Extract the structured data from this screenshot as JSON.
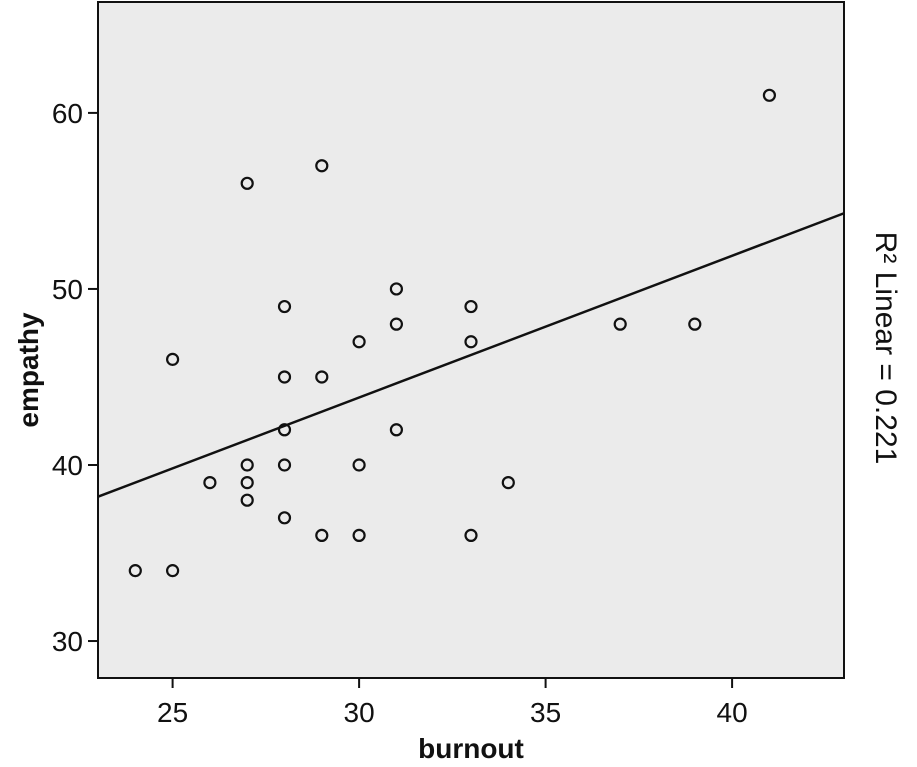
{
  "chart_data": {
    "type": "scatter",
    "xlabel": "burnout",
    "ylabel": "empathy",
    "xlim": [
      23,
      43
    ],
    "ylim": [
      27.9,
      66.3
    ],
    "xticks": [
      25,
      30,
      35,
      40
    ],
    "yticks": [
      30,
      40,
      50,
      60
    ],
    "grid": false,
    "points": [
      {
        "x": 24,
        "y": 34
      },
      {
        "x": 25,
        "y": 34
      },
      {
        "x": 25,
        "y": 46
      },
      {
        "x": 26,
        "y": 39
      },
      {
        "x": 27,
        "y": 56
      },
      {
        "x": 27,
        "y": 40
      },
      {
        "x": 27,
        "y": 39
      },
      {
        "x": 27,
        "y": 38
      },
      {
        "x": 28,
        "y": 49
      },
      {
        "x": 28,
        "y": 45
      },
      {
        "x": 28,
        "y": 42
      },
      {
        "x": 28,
        "y": 40
      },
      {
        "x": 28,
        "y": 37
      },
      {
        "x": 29,
        "y": 57
      },
      {
        "x": 29,
        "y": 45
      },
      {
        "x": 29,
        "y": 36
      },
      {
        "x": 30,
        "y": 47
      },
      {
        "x": 30,
        "y": 40
      },
      {
        "x": 30,
        "y": 36
      },
      {
        "x": 31,
        "y": 50
      },
      {
        "x": 31,
        "y": 48
      },
      {
        "x": 31,
        "y": 42
      },
      {
        "x": 33,
        "y": 49
      },
      {
        "x": 33,
        "y": 47
      },
      {
        "x": 33,
        "y": 36
      },
      {
        "x": 34,
        "y": 39
      },
      {
        "x": 37,
        "y": 48
      },
      {
        "x": 39,
        "y": 48
      },
      {
        "x": 41,
        "y": 61
      }
    ],
    "fit_line": {
      "x": [
        23,
        43
      ],
      "y": [
        38.2,
        54.3
      ]
    },
    "fit_label": "R² Linear = 0.221",
    "colors": {
      "plot_background": "#ebebeb",
      "marker": "#111111",
      "line": "#111111"
    }
  }
}
